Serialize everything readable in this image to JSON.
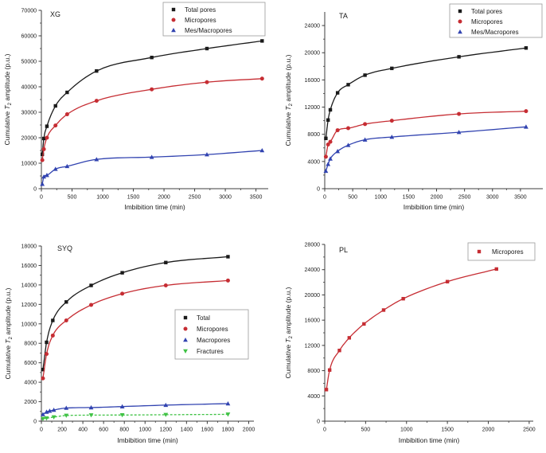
{
  "figure": {
    "background": "#ffffff",
    "axis_color": "#3c3c3c",
    "xlabel": "Imbibition time (min)",
    "ylabel": "Cumulative T2 amplitude (p.u.)"
  },
  "chart_data": [
    {
      "id": "xg",
      "type": "scatter",
      "title": "XG",
      "xlabel": "Imbibition time (min)",
      "ylabel": "Cumulative T2 amplitude (p.u.)",
      "xlim": [
        0,
        3700
      ],
      "ylim": [
        0,
        70000
      ],
      "xticks": [
        0,
        500,
        1000,
        1500,
        2000,
        2500,
        3000,
        3500
      ],
      "yticks": [
        0,
        10000,
        20000,
        30000,
        40000,
        50000,
        60000,
        70000
      ],
      "grid": false,
      "legend_position": "top-right",
      "series": [
        {
          "name": "Total pores",
          "color": "#1a1a1a",
          "marker": "square",
          "x": [
            15,
            40,
            90,
            230,
            420,
            900,
            1800,
            2700,
            3600
          ],
          "y": [
            13500,
            19700,
            24500,
            32500,
            37800,
            46200,
            51500,
            55000,
            58000
          ]
        },
        {
          "name": "Micropores",
          "color": "#c62d33",
          "marker": "circle",
          "x": [
            15,
            40,
            90,
            230,
            420,
            900,
            1800,
            2700,
            3600
          ],
          "y": [
            11200,
            15500,
            20000,
            24800,
            29200,
            34500,
            39000,
            41800,
            43200
          ]
        },
        {
          "name": "Mes/Macropores",
          "color": "#3143b0",
          "marker": "triangle-up",
          "x": [
            15,
            40,
            90,
            230,
            420,
            900,
            1800,
            2700,
            3600
          ],
          "y": [
            1800,
            4700,
            5300,
            7700,
            8800,
            11500,
            12400,
            13400,
            15000
          ]
        }
      ]
    },
    {
      "id": "ta",
      "type": "scatter",
      "title": "TA",
      "xlabel": "Imbibition time (min)",
      "ylabel": "Cumulative T2 amplitude (p.u.)",
      "xlim": [
        0,
        3900
      ],
      "ylim": [
        0,
        26000
      ],
      "xticks": [
        0,
        500,
        1000,
        1500,
        2000,
        2500,
        3000,
        3500
      ],
      "yticks": [
        0,
        4000,
        8000,
        12000,
        16000,
        20000,
        24000
      ],
      "grid": false,
      "legend_position": "top-right",
      "series": [
        {
          "name": "Total pores",
          "color": "#1a1a1a",
          "marker": "square",
          "x": [
            20,
            60,
            100,
            230,
            420,
            720,
            1200,
            2400,
            3600
          ],
          "y": [
            7400,
            10100,
            11600,
            14100,
            15300,
            16700,
            17700,
            19400,
            20700
          ]
        },
        {
          "name": "Micropores",
          "color": "#c62d33",
          "marker": "circle",
          "x": [
            20,
            60,
            100,
            230,
            420,
            720,
            1200,
            2400,
            3600
          ],
          "y": [
            4700,
            6500,
            6900,
            8600,
            8900,
            9500,
            10000,
            11000,
            11400
          ]
        },
        {
          "name": "Mes/Macropores",
          "color": "#3143b0",
          "marker": "triangle-up",
          "x": [
            20,
            60,
            100,
            230,
            420,
            720,
            1200,
            2400,
            3600
          ],
          "y": [
            2600,
            3600,
            4400,
            5500,
            6400,
            7200,
            7600,
            8300,
            9100
          ]
        }
      ]
    },
    {
      "id": "syq",
      "type": "scatter",
      "title": "SYQ",
      "xlabel": "Imbibition time (min)",
      "ylabel": "Cumulative T2 amplitude (p.u.)",
      "xlim": [
        0,
        2050
      ],
      "ylim": [
        0,
        18000
      ],
      "xticks": [
        0,
        200,
        400,
        600,
        800,
        1000,
        1200,
        1400,
        1600,
        1800,
        2000
      ],
      "yticks": [
        0,
        2000,
        4000,
        6000,
        8000,
        10000,
        12000,
        14000,
        16000,
        18000
      ],
      "grid": false,
      "legend_position": "middle-right",
      "series": [
        {
          "name": "Total",
          "color": "#1a1a1a",
          "marker": "square",
          "x": [
            15,
            50,
            110,
            240,
            480,
            780,
            1200,
            1800
          ],
          "y": [
            5300,
            8100,
            10350,
            12250,
            13950,
            15250,
            16300,
            16900
          ]
        },
        {
          "name": "Micropores",
          "color": "#c62d33",
          "marker": "circle",
          "x": [
            15,
            50,
            110,
            240,
            480,
            780,
            1200,
            1800
          ],
          "y": [
            4400,
            6900,
            8800,
            10350,
            11950,
            13100,
            13950,
            14450
          ]
        },
        {
          "name": "Macropores",
          "color": "#3143b0",
          "marker": "triangle-up",
          "x": [
            15,
            50,
            80,
            120,
            240,
            480,
            780,
            1200,
            1800
          ],
          "y": [
            700,
            950,
            1050,
            1150,
            1350,
            1400,
            1500,
            1650,
            1800
          ]
        },
        {
          "name": "Fractures",
          "color": "#3fc244",
          "marker": "triangle-down",
          "dash": "3,2",
          "x": [
            15,
            50,
            120,
            240,
            480,
            780,
            1200,
            1800
          ],
          "y": [
            250,
            300,
            420,
            580,
            620,
            630,
            660,
            700
          ]
        }
      ]
    },
    {
      "id": "pl",
      "type": "scatter",
      "title": "PL",
      "xlabel": "Imbibition time (min)",
      "ylabel": "Cumulative T2 amplitude (p.u.)",
      "xlim": [
        0,
        2550
      ],
      "ylim": [
        0,
        28000
      ],
      "xticks": [
        0,
        500,
        1000,
        1500,
        2000,
        2500
      ],
      "yticks": [
        0,
        4000,
        8000,
        12000,
        16000,
        20000,
        24000,
        28000
      ],
      "grid": false,
      "legend_position": "top-right",
      "series": [
        {
          "name": "Micropores",
          "color": "#c62d33",
          "marker": "square",
          "x": [
            20,
            60,
            180,
            300,
            480,
            720,
            960,
            1500,
            2100
          ],
          "y": [
            5000,
            8100,
            11200,
            13200,
            15400,
            17600,
            19400,
            22100,
            24100
          ]
        }
      ]
    }
  ]
}
